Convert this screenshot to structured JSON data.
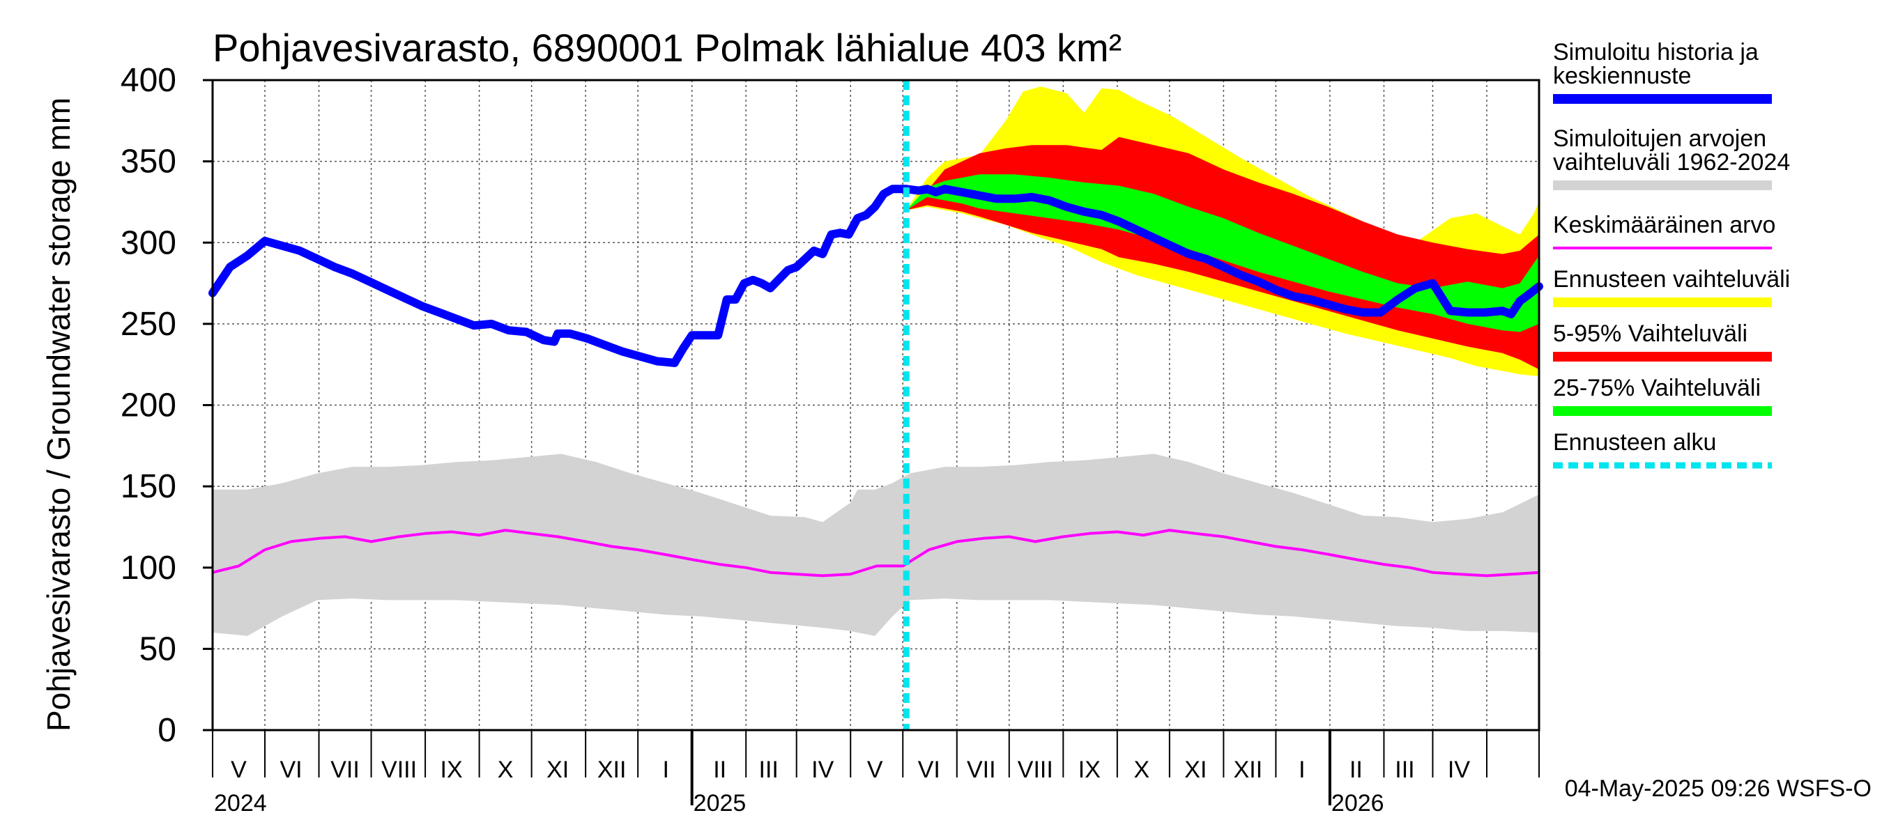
{
  "chart_data": {
    "type": "area",
    "title": "Pohjavesivarasto, 6890001 Polmak lähialue 403 km²",
    "ylabel": "Pohjavesivarasto / Groundwater storage   mm",
    "xlabel": "",
    "ylim": [
      0,
      400
    ],
    "yticks": [
      0,
      50,
      100,
      150,
      200,
      250,
      300,
      350,
      400
    ],
    "x_unit": "days since 2024-04-01",
    "xlim": [
      0,
      761
    ],
    "grid": true,
    "forecast_start_day": 398,
    "month_labels": [
      {
        "label": "V",
        "day": 15
      },
      {
        "label": "VI",
        "day": 45
      },
      {
        "label": "VII",
        "day": 76
      },
      {
        "label": "VIII",
        "day": 107
      },
      {
        "label": "IX",
        "day": 137
      },
      {
        "label": "X",
        "day": 168
      },
      {
        "label": "XI",
        "day": 198
      },
      {
        "label": "XII",
        "day": 229
      },
      {
        "label": "I",
        "day": 260
      },
      {
        "label": "II",
        "day": 291
      },
      {
        "label": "III",
        "day": 319
      },
      {
        "label": "IV",
        "day": 350
      },
      {
        "label": "V",
        "day": 380
      },
      {
        "label": "VI",
        "day": 411
      },
      {
        "label": "VII",
        "day": 441
      },
      {
        "label": "VIII",
        "day": 472
      },
      {
        "label": "IX",
        "day": 503
      },
      {
        "label": "X",
        "day": 533
      },
      {
        "label": "XI",
        "day": 564
      },
      {
        "label": "XII",
        "day": 594
      },
      {
        "label": "I",
        "day": 625
      },
      {
        "label": "II",
        "day": 656
      },
      {
        "label": "III",
        "day": 684
      },
      {
        "label": "IV",
        "day": 715
      }
    ],
    "month_boundaries": [
      0,
      30,
      61,
      91,
      122,
      153,
      183,
      214,
      244,
      275,
      306,
      335,
      366,
      396,
      427,
      457,
      488,
      519,
      549,
      580,
      610,
      641,
      672,
      700,
      731,
      761
    ],
    "year_boundaries": [
      275,
      641
    ],
    "year_labels": [
      {
        "label": "2024",
        "day": 0
      },
      {
        "label": "2025",
        "day": 275
      },
      {
        "label": "2026",
        "day": 641
      }
    ],
    "series": [
      {
        "name": "Simuloitu historia ja keskiennuste",
        "color": "#0000ff",
        "x": [
          0,
          10,
          20,
          30,
          40,
          50,
          60,
          70,
          80,
          90,
          100,
          110,
          120,
          130,
          140,
          150,
          160,
          170,
          180,
          190,
          196,
          198,
          205,
          215,
          225,
          235,
          245,
          255,
          265,
          270,
          275,
          280,
          290,
          295,
          300,
          305,
          310,
          315,
          320,
          330,
          335,
          340,
          345,
          350,
          355,
          360,
          365,
          370,
          375,
          380,
          385,
          390,
          398,
          405,
          410,
          415,
          420,
          430,
          440,
          450,
          460,
          470,
          480,
          490,
          500,
          510,
          520,
          530,
          540,
          550,
          560,
          570,
          580,
          590,
          600,
          610,
          620,
          630,
          640,
          650,
          660,
          670,
          680,
          690,
          700,
          710,
          720,
          730,
          740,
          745,
          750,
          755,
          761
        ],
        "values": [
          269,
          285,
          292,
          301,
          298,
          295,
          290,
          285,
          281,
          276,
          271,
          266,
          261,
          257,
          253,
          249,
          250,
          246,
          245,
          240,
          239,
          244,
          244,
          241,
          237,
          233,
          230,
          227,
          226,
          235,
          243,
          243,
          243,
          265,
          265,
          275,
          277,
          275,
          272,
          283,
          285,
          290,
          295,
          293,
          305,
          306,
          305,
          315,
          317,
          322,
          330,
          333,
          333,
          332,
          333,
          331,
          333,
          331,
          329,
          327,
          327,
          328,
          326,
          322,
          319,
          317,
          313,
          308,
          303,
          298,
          293,
          290,
          285,
          280,
          276,
          271,
          267,
          265,
          262,
          259,
          257,
          257,
          265,
          272,
          275,
          258,
          257,
          257,
          258,
          256,
          264,
          268,
          273
        ]
      },
      {
        "name": "Keskimääräinen arvo",
        "color": "#ff00ff",
        "x": [
          0,
          15,
          30,
          45,
          61,
          76,
          91,
          107,
          122,
          137,
          153,
          168,
          183,
          198,
          214,
          229,
          244,
          260,
          275,
          291,
          306,
          320,
          335,
          350,
          366,
          381,
          396,
          411,
          427,
          442,
          457,
          472,
          488,
          503,
          519,
          534,
          549,
          564,
          580,
          595,
          610,
          625,
          641,
          656,
          672,
          687,
          700,
          715,
          731,
          746,
          761
        ],
        "values": [
          97,
          101,
          111,
          116,
          118,
          119,
          116,
          119,
          121,
          122,
          120,
          123,
          121,
          119,
          116,
          113,
          111,
          108,
          105,
          102,
          100,
          97,
          96,
          95,
          96,
          101,
          101,
          111,
          116,
          118,
          119,
          116,
          119,
          121,
          122,
          120,
          123,
          121,
          119,
          116,
          113,
          111,
          108,
          105,
          102,
          100,
          97,
          96,
          95,
          96,
          97
        ]
      }
    ],
    "bands": [
      {
        "name": "Simuloitujen arvojen vaihteluväli 1962-2024",
        "color": "#d3d3d3",
        "x": [
          0,
          20,
          40,
          60,
          80,
          100,
          120,
          140,
          160,
          180,
          200,
          220,
          240,
          260,
          280,
          300,
          320,
          340,
          350,
          366,
          370,
          380,
          390,
          400,
          420,
          440,
          460,
          480,
          500,
          520,
          540,
          560,
          580,
          600,
          620,
          640,
          660,
          680,
          700,
          720,
          740,
          761
        ],
        "upper": [
          148,
          148,
          152,
          158,
          162,
          162,
          163,
          165,
          166,
          168,
          170,
          165,
          158,
          152,
          146,
          139,
          132,
          131,
          128,
          140,
          148,
          148,
          152,
          158,
          162,
          162,
          163,
          165,
          166,
          168,
          170,
          165,
          158,
          152,
          146,
          139,
          132,
          131,
          128,
          130,
          134,
          145
        ],
        "lower": [
          60,
          58,
          70,
          80,
          81,
          80,
          80,
          80,
          79,
          78,
          77,
          75,
          73,
          71,
          70,
          68,
          66,
          64,
          63,
          61,
          60,
          58,
          70,
          80,
          81,
          80,
          80,
          80,
          79,
          78,
          77,
          75,
          73,
          71,
          70,
          68,
          66,
          64,
          63,
          61,
          61,
          60
        ]
      },
      {
        "name": "Ennusteen vaihteluväli",
        "color": "#ffff00",
        "x": [
          398,
          410,
          420,
          430,
          440,
          455,
          465,
          475,
          490,
          500,
          510,
          520,
          530,
          550,
          570,
          590,
          610,
          630,
          650,
          670,
          690,
          710,
          725,
          740,
          750,
          758,
          761
        ],
        "upper": [
          320,
          340,
          350,
          352,
          354,
          375,
          393,
          396,
          392,
          380,
          395,
          394,
          388,
          378,
          365,
          352,
          340,
          328,
          318,
          308,
          300,
          315,
          318,
          310,
          305,
          318,
          325
        ],
        "lower": [
          320,
          322,
          320,
          318,
          315,
          311,
          307,
          303,
          298,
          293,
          288,
          284,
          280,
          274,
          268,
          262,
          256,
          250,
          244,
          239,
          234,
          229,
          224,
          221,
          219,
          218,
          218
        ]
      },
      {
        "name": "5-95% Vaihteluväli",
        "color": "#ff0000",
        "x": [
          398,
          410,
          420,
          430,
          440,
          455,
          470,
          490,
          510,
          520,
          540,
          560,
          580,
          600,
          620,
          640,
          660,
          680,
          700,
          720,
          740,
          750,
          761
        ],
        "upper": [
          320,
          332,
          345,
          350,
          355,
          358,
          360,
          360,
          357,
          365,
          360,
          355,
          345,
          337,
          330,
          322,
          313,
          305,
          300,
          296,
          293,
          295,
          305
        ],
        "lower": [
          320,
          323,
          321,
          319,
          316,
          311,
          306,
          301,
          296,
          291,
          287,
          282,
          276,
          270,
          264,
          258,
          252,
          246,
          241,
          236,
          232,
          228,
          222
        ]
      },
      {
        "name": "25-75% Vaihteluväli",
        "color": "#00ff00",
        "x": [
          398,
          410,
          420,
          430,
          440,
          460,
          480,
          500,
          520,
          540,
          560,
          580,
          600,
          620,
          640,
          660,
          680,
          700,
          720,
          740,
          750,
          761
        ],
        "upper": [
          320,
          334,
          338,
          340,
          342,
          342,
          340,
          337,
          335,
          330,
          322,
          315,
          306,
          298,
          290,
          282,
          275,
          272,
          276,
          272,
          275,
          292
        ],
        "lower": [
          320,
          328,
          326,
          324,
          321,
          318,
          315,
          312,
          308,
          302,
          296,
          289,
          282,
          276,
          270,
          265,
          260,
          256,
          250,
          246,
          245,
          250
        ]
      }
    ],
    "legend": {
      "position": "right",
      "entries": [
        {
          "label_lines": [
            "Simuloitu historia ja",
            "keskiennuste"
          ],
          "color": "#0000ff",
          "style": "thick"
        },
        {
          "label_lines": [
            "Simuloitujen arvojen",
            "vaihteluväli 1962-2024"
          ],
          "color": "#d3d3d3",
          "style": "thick"
        },
        {
          "label_lines": [
            "Keskimääräinen arvo"
          ],
          "color": "#ff00ff",
          "style": "thin"
        },
        {
          "label_lines": [
            "Ennusteen vaihteluväli"
          ],
          "color": "#ffff00",
          "style": "thick"
        },
        {
          "label_lines": [
            "5-95% Vaihteluväli"
          ],
          "color": "#ff0000",
          "style": "thick"
        },
        {
          "label_lines": [
            "25-75% Vaihteluväli"
          ],
          "color": "#00ff00",
          "style": "thick"
        },
        {
          "label_lines": [
            "Ennusteen alku"
          ],
          "color": "#00e5ee",
          "style": "dashed"
        }
      ]
    },
    "footer": "04-May-2025 09:26 WSFS-O"
  }
}
